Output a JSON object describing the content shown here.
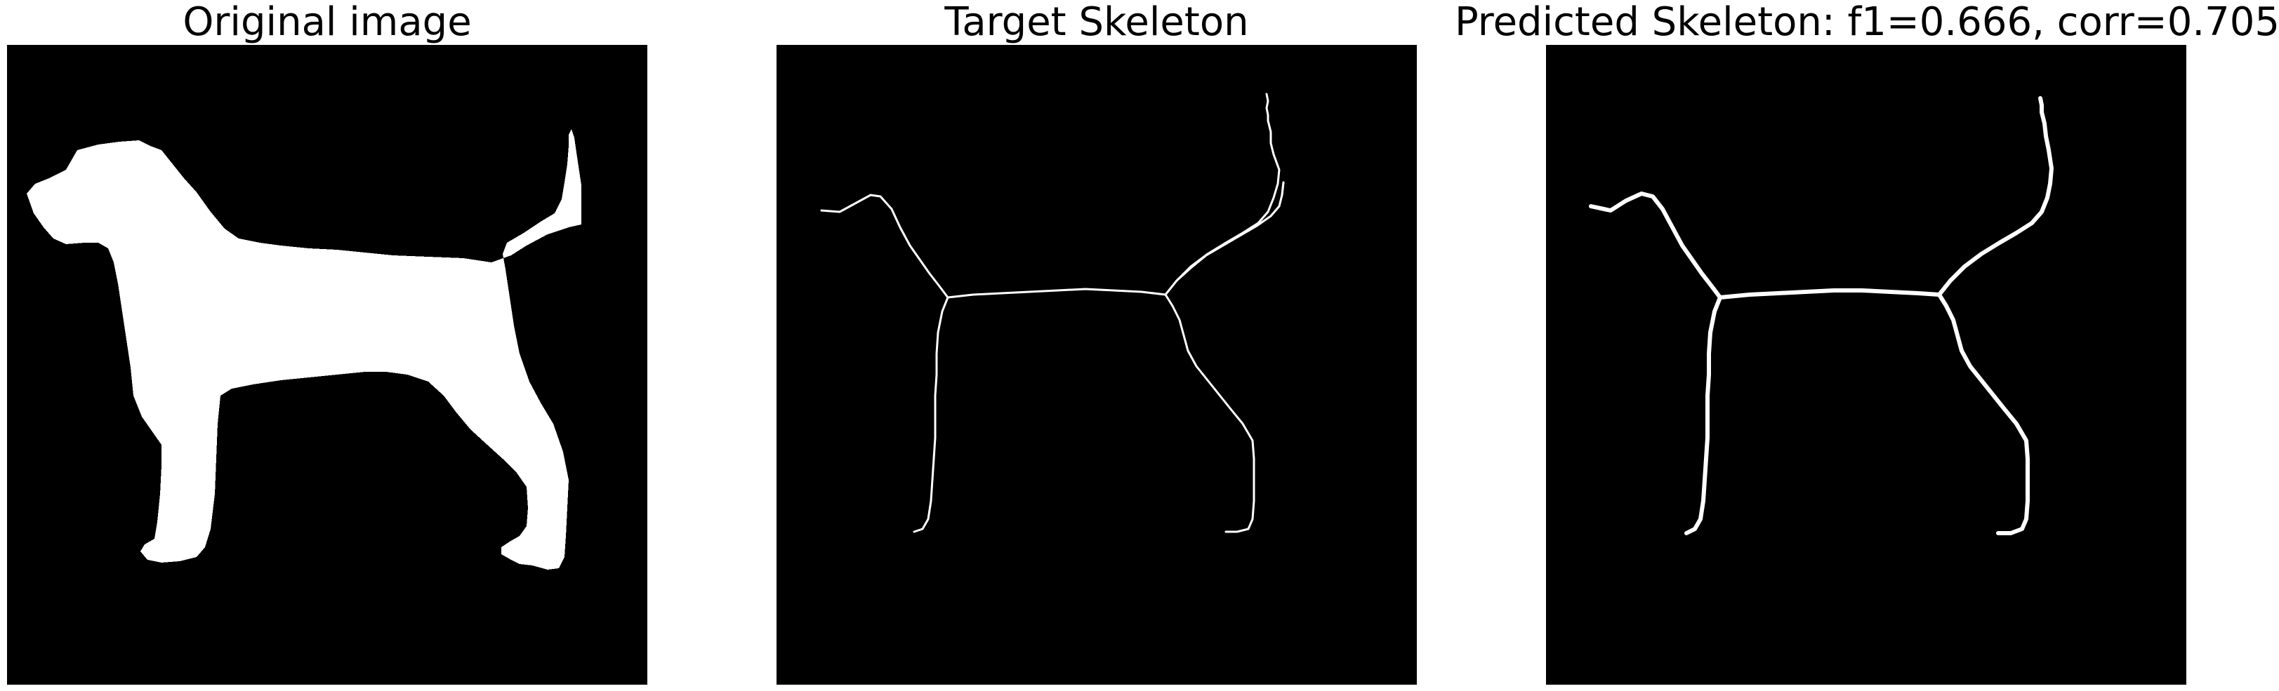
{
  "panels": [
    {
      "title": "Original image",
      "content": "filled-silhouette"
    },
    {
      "title": "Target Skeleton",
      "content": "thin-skeleton"
    },
    {
      "title": "Predicted Skeleton: f1=0.666, corr=0.705",
      "content": "thick-skeleton"
    }
  ],
  "colors": {
    "background": "#000000",
    "foreground": "#ffffff",
    "page": "#ffffff"
  }
}
